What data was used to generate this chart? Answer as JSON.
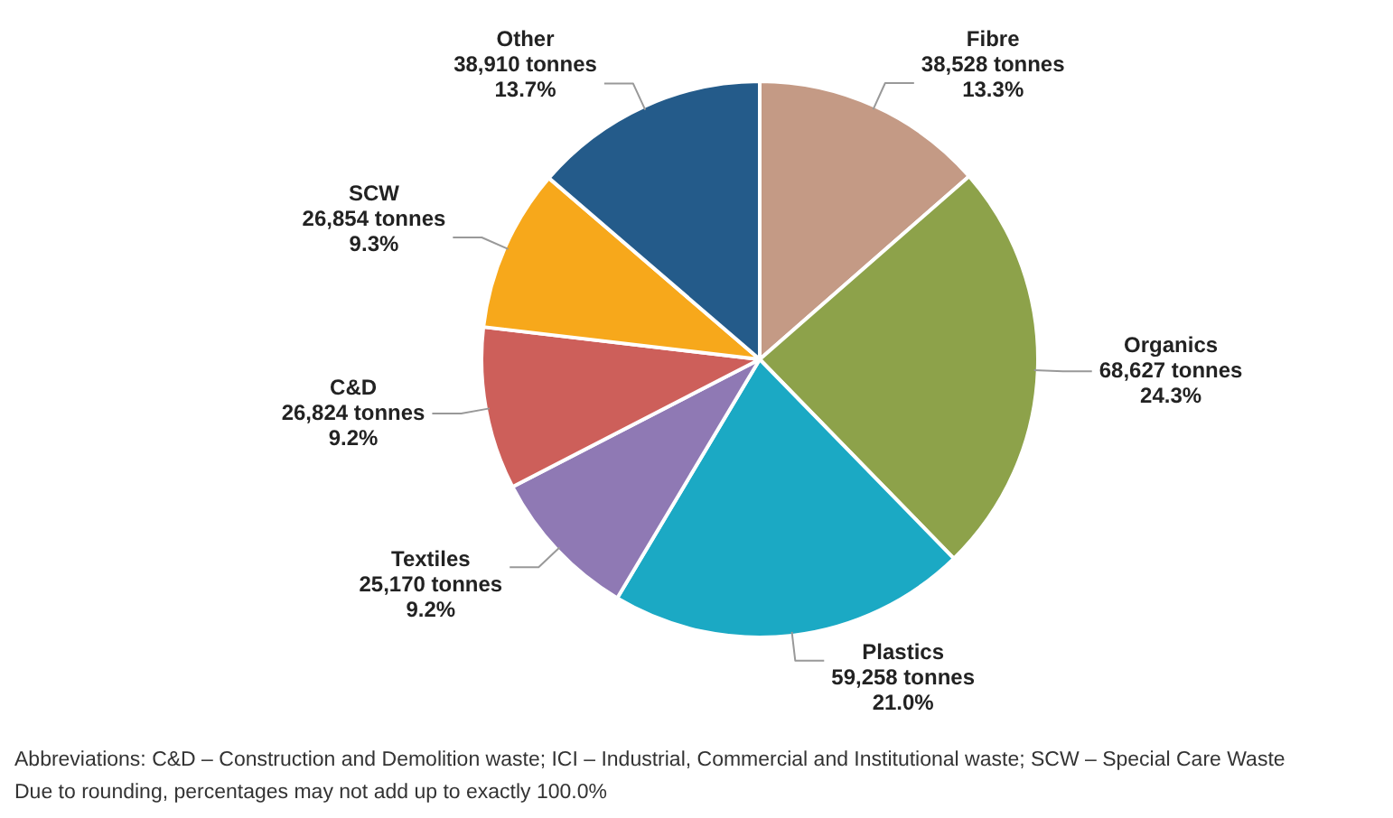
{
  "chart_data": {
    "type": "pie",
    "categories": [
      "Fibre",
      "Organics",
      "Plastics",
      "Textiles",
      "C&D",
      "SCW",
      "Other"
    ],
    "values": [
      38528,
      68627,
      59258,
      25170,
      26824,
      26854,
      38910
    ],
    "colors": [
      "#c49a85",
      "#8da24a",
      "#1ba9c4",
      "#8f79b4",
      "#cd5f5a",
      "#f7a81b",
      "#245b8a"
    ],
    "value_labels": [
      "38,528 tonnes\n13.3%",
      "68,627 tonnes\n24.3%",
      "59,258 tonnes\n21.0%",
      "25,170 tonnes\n9.2%",
      "26,824 tonnes\n9.2%",
      "26,854 tonnes\n9.3%",
      "38,910 tonnes\n13.7%"
    ],
    "annotations": [
      "Abbreviations: C&D – Construction and Demolition waste; ICI – Industrial, Commercial and Institutional waste; SCW – Special Care Waste",
      "Due to rounding, percentages may not add up to exactly 100.0%"
    ]
  }
}
